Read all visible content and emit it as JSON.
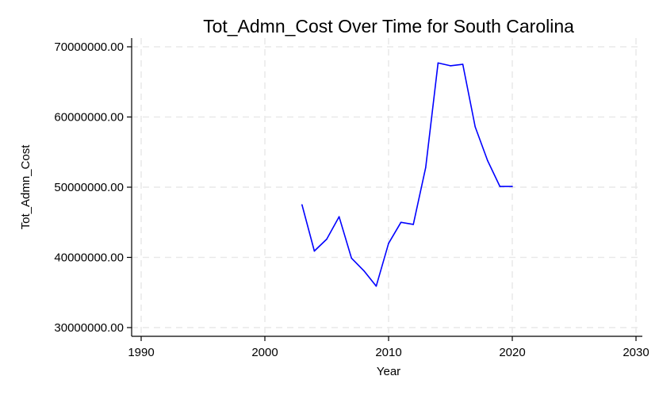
{
  "chart_data": {
    "type": "line",
    "title": "Tot_Admn_Cost Over Time for South Carolina",
    "xlabel": "Year",
    "ylabel": "Tot_Admn_Cost",
    "xlim": [
      1990,
      2030
    ],
    "ylim": [
      30000000,
      70000000
    ],
    "xticks": [
      1990,
      2000,
      2010,
      2020,
      2030
    ],
    "yticks": [
      30000000,
      40000000,
      50000000,
      60000000,
      70000000
    ],
    "xtick_labels": [
      "1990",
      "2000",
      "2010",
      "2020",
      "2030"
    ],
    "ytick_labels": [
      "30000000.00",
      "40000000.00",
      "50000000.00",
      "60000000.00",
      "70000000.00"
    ],
    "grid": true,
    "series": [
      {
        "color": "#0000ff",
        "x": [
          2003,
          2004,
          2005,
          2006,
          2007,
          2008,
          2009,
          2010,
          2011,
          2012,
          2013,
          2014,
          2015,
          2016,
          2017,
          2018,
          2019,
          2020
        ],
        "y": [
          47500000,
          40900000,
          42600000,
          45800000,
          39900000,
          38100000,
          35900000,
          42000000,
          45000000,
          44700000,
          52800000,
          67700000,
          67300000,
          67500000,
          58600000,
          53800000,
          50100000,
          50100000
        ]
      }
    ]
  }
}
